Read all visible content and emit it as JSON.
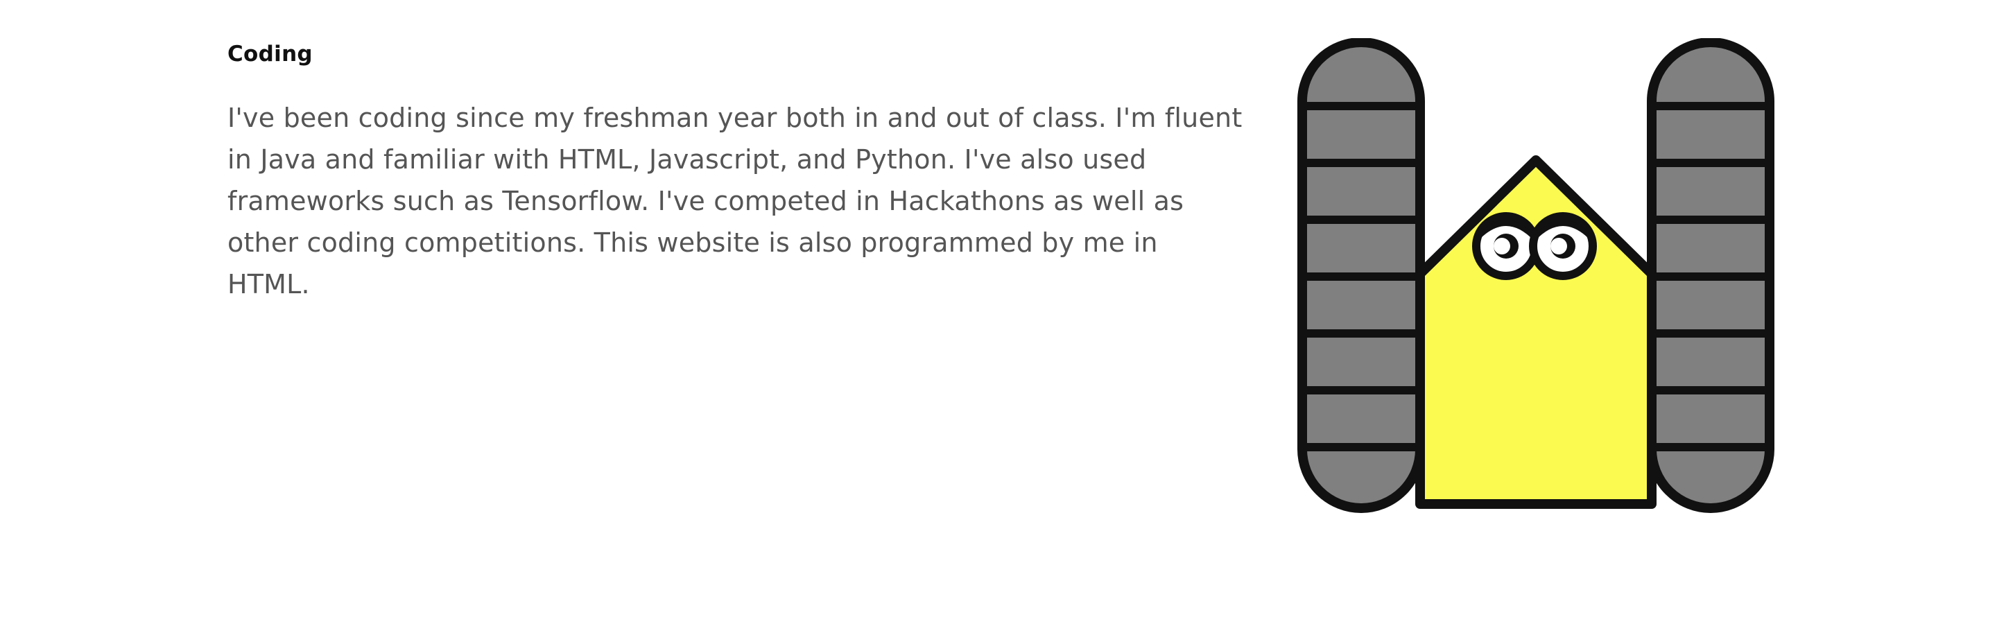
{
  "section": {
    "heading": "Coding",
    "paragraph": "I've been coding since my freshman year both in and out of class. I'm fluent in Java and familiar with HTML, Javascript, and Python. I've also used frameworks such as Tensorflow. I've competed in Hackathons as well as other coding competitions. This website is also programmed by me in HTML."
  },
  "illustration": {
    "icon": "robot-mascot-icon",
    "colors": {
      "outline": "#111111",
      "track": "#808080",
      "body": "#fafa50",
      "eye": "#ffffff"
    }
  }
}
